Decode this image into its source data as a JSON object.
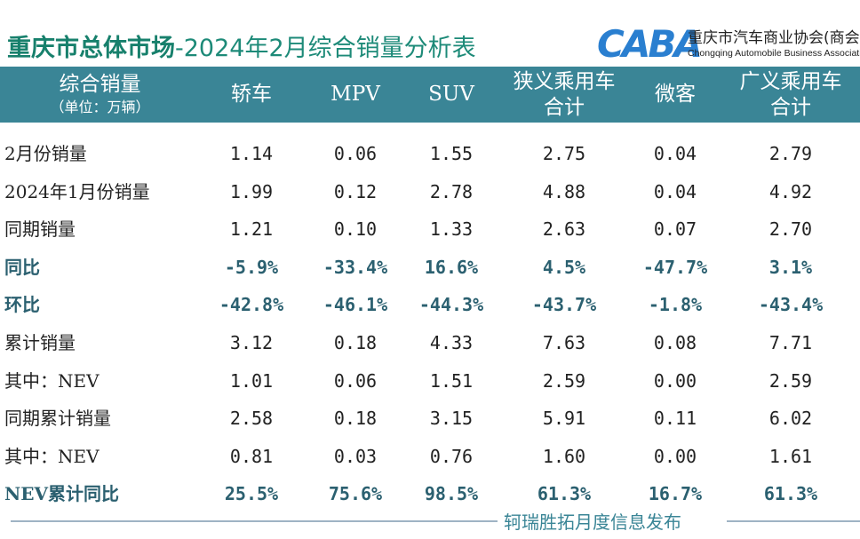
{
  "title": {
    "bold": "重庆市总体市场",
    "rest": "-2024年2月综合销量分析表"
  },
  "logo": {
    "mark": "CABA",
    "cn": "重庆市汽车商业协会(商会)",
    "en": "Chongqing Automobile Business Association"
  },
  "header": {
    "label": "综合销量",
    "unit": "（单位：万辆）",
    "columns": [
      {
        "line1": "轿车",
        "line2": ""
      },
      {
        "line1": "MPV",
        "line2": ""
      },
      {
        "line1": "SUV",
        "line2": ""
      },
      {
        "line1": "狭义乘用车",
        "line2": "合计"
      },
      {
        "line1": "微客",
        "line2": ""
      },
      {
        "line1": "广义乘用车",
        "line2": "合计"
      }
    ]
  },
  "rows": [
    {
      "label": "2月份销量",
      "bold": false,
      "values": [
        "1.14",
        "0.06",
        "1.55",
        "2.75",
        "0.04",
        "2.79"
      ]
    },
    {
      "label": "2024年1月份销量",
      "bold": false,
      "values": [
        "1.99",
        "0.12",
        "2.78",
        "4.88",
        "0.04",
        "4.92"
      ]
    },
    {
      "label": "同期销量",
      "bold": false,
      "values": [
        "1.21",
        "0.10",
        "1.33",
        "2.63",
        "0.07",
        "2.70"
      ]
    },
    {
      "label": "同比",
      "bold": true,
      "values": [
        "-5.9%",
        "-33.4%",
        "16.6%",
        "4.5%",
        "-47.7%",
        "3.1%"
      ]
    },
    {
      "label": "环比",
      "bold": true,
      "values": [
        "-42.8%",
        "-46.1%",
        "-44.3%",
        "-43.7%",
        "-1.8%",
        "-43.4%"
      ]
    },
    {
      "label": "累计销量",
      "bold": false,
      "values": [
        "3.12",
        "0.18",
        "4.33",
        "7.63",
        "0.08",
        "7.71"
      ]
    },
    {
      "label": "其中：NEV",
      "bold": false,
      "values": [
        "1.01",
        "0.06",
        "1.51",
        "2.59",
        "0.00",
        "2.59"
      ]
    },
    {
      "label": "同期累计销量",
      "bold": false,
      "values": [
        "2.58",
        "0.18",
        "3.15",
        "5.91",
        "0.11",
        "6.02"
      ]
    },
    {
      "label": "其中：NEV",
      "bold": false,
      "values": [
        "0.81",
        "0.03",
        "0.76",
        "1.60",
        "0.00",
        "1.61"
      ]
    },
    {
      "label": "NEV累计同比",
      "bold": true,
      "values": [
        "25.5%",
        "75.6%",
        "98.5%",
        "61.3%",
        "16.7%",
        "61.3%"
      ]
    }
  ],
  "footer": "轲瑞胜拓月度信息发布",
  "colors": {
    "header_bg": "#3a8596",
    "title": "#1d8a78",
    "bold_text": "#2b6070"
  }
}
